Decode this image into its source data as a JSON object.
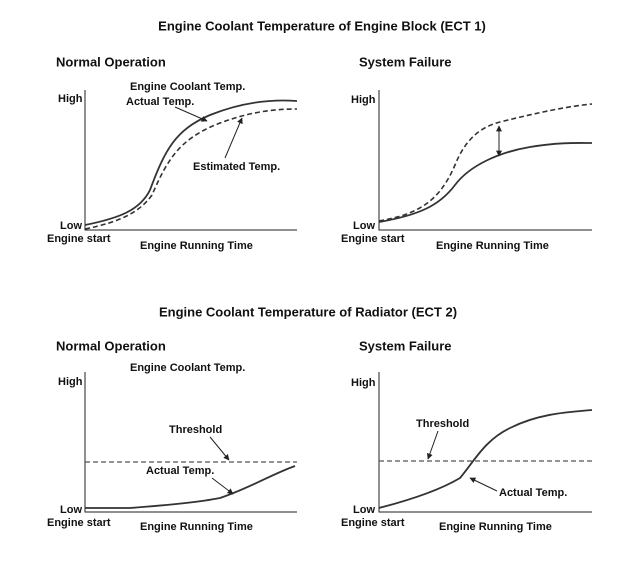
{
  "sections": [
    {
      "title": "Engine Coolant Temperature of Engine Block (ECT 1)",
      "panels": [
        {
          "title": "Normal Operation",
          "y_high": "High",
          "y_low": "Low",
          "x_start": "Engine start",
          "x_label": "Engine Running Time",
          "annotations": [
            "Engine Coolant Temp.",
            "Actual Temp.",
            "Estimated Temp."
          ]
        },
        {
          "title": "System Failure",
          "y_high": "High",
          "y_low": "Low",
          "x_start": "Engine start",
          "x_label": "Engine Running Time"
        }
      ]
    },
    {
      "title": "Engine Coolant Temperature of Radiator (ECT 2)",
      "panels": [
        {
          "title": "Normal Operation",
          "y_high": "High",
          "y_low": "Low",
          "x_start": "Engine start",
          "x_label": "Engine Running Time",
          "annotations": [
            "Engine Coolant Temp.",
            "Threshold",
            "Actual Temp."
          ]
        },
        {
          "title": "System Failure",
          "y_high": "High",
          "y_low": "Low",
          "x_start": "Engine start",
          "x_label": "Engine Running Time",
          "annotations": [
            "Threshold",
            "Actual Temp."
          ]
        }
      ]
    }
  ]
}
